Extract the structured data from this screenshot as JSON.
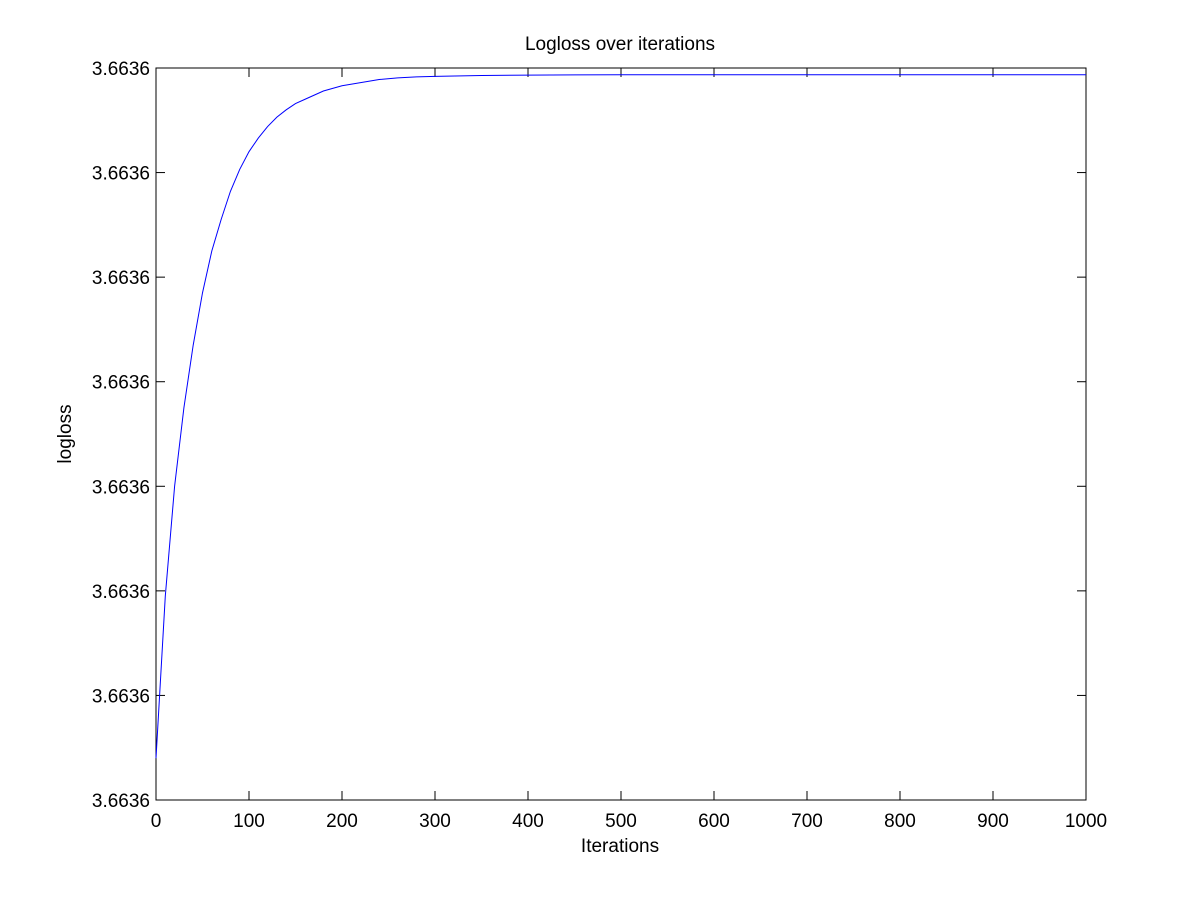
{
  "chart_data": {
    "type": "line",
    "title": "Logloss over iterations",
    "xlabel": "Iterations",
    "ylabel": "logloss",
    "xlim": [
      0,
      1000
    ],
    "ylim": [
      0,
      7
    ],
    "x_ticks": [
      0,
      100,
      200,
      300,
      400,
      500,
      600,
      700,
      800,
      900,
      1000
    ],
    "x_tick_labels": [
      "0",
      "100",
      "200",
      "300",
      "400",
      "500",
      "600",
      "700",
      "800",
      "900",
      "1000"
    ],
    "y_ticks": [
      0,
      1,
      2,
      3,
      4,
      5,
      6,
      7
    ],
    "y_tick_labels": [
      "3.6636",
      "3.6636",
      "3.6636",
      "3.6636",
      "3.6636",
      "3.6636",
      "3.6636",
      "3.6636"
    ],
    "y_tick_note": "y-axis tick labels are all printed identically (3.6636); y values are expressed in tick-interval units from the bottom tick",
    "grid": false,
    "legend": "none",
    "series": [
      {
        "color": "#0000ff",
        "x": [
          0,
          10,
          20,
          30,
          40,
          50,
          60,
          70,
          80,
          90,
          100,
          110,
          120,
          130,
          140,
          150,
          160,
          180,
          200,
          220,
          240,
          260,
          280,
          300,
          350,
          400,
          450,
          500,
          600,
          700,
          800,
          900,
          1000
        ],
        "values": [
          0.4,
          1.95,
          3.0,
          3.75,
          4.35,
          4.85,
          5.25,
          5.55,
          5.82,
          6.03,
          6.2,
          6.33,
          6.44,
          6.53,
          6.6,
          6.66,
          6.7,
          6.78,
          6.83,
          6.86,
          6.89,
          6.905,
          6.915,
          6.92,
          6.928,
          6.932,
          6.934,
          6.935,
          6.936,
          6.936,
          6.936,
          6.936,
          6.936
        ]
      }
    ]
  }
}
